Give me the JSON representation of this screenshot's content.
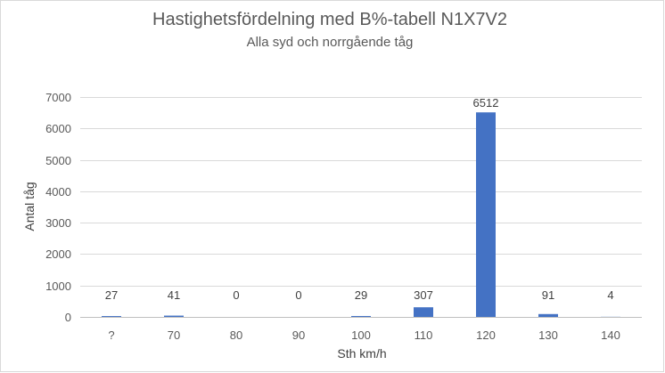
{
  "chart_data": {
    "type": "bar",
    "title": "Hastighetsfördelning med B%-tabell N1X7V2",
    "subtitle": "Alla syd och norrgående tåg",
    "xlabel": "Sth km/h",
    "ylabel": "Antal tåg",
    "categories": [
      "?",
      "70",
      "80",
      "90",
      "100",
      "110",
      "120",
      "130",
      "140"
    ],
    "values": [
      27,
      41,
      0,
      0,
      29,
      307,
      6512,
      91,
      4
    ],
    "data_labels": [
      "27",
      "41",
      "0",
      "0",
      "29",
      "307",
      "6512",
      "91",
      "4"
    ],
    "ylim": [
      0,
      7000
    ],
    "yticks": [
      0,
      1000,
      2000,
      3000,
      4000,
      5000,
      6000,
      7000
    ],
    "ytick_labels": [
      "0",
      "1000",
      "2000",
      "3000",
      "4000",
      "5000",
      "6000",
      "7000"
    ],
    "grid": true,
    "legend": "none",
    "colors": {
      "bar": "#4472c4",
      "grid": "#d9d9d9",
      "text": "#595959"
    }
  }
}
